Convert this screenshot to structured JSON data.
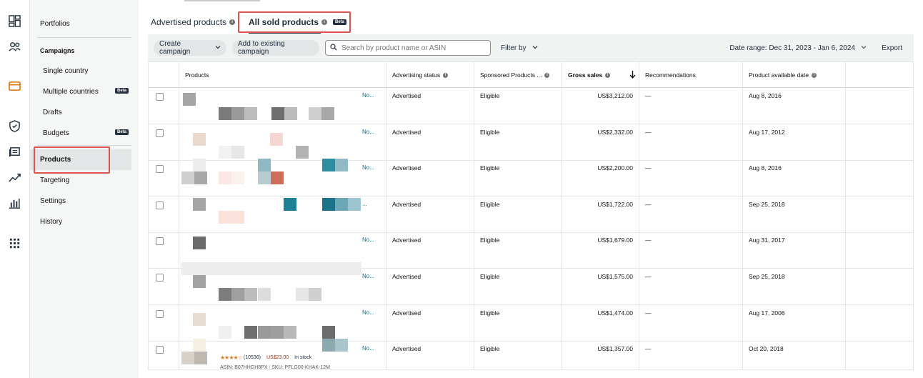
{
  "tabs": {
    "advertised": "Advertised products",
    "sold": "All sold products",
    "sold_badge": "Beta"
  },
  "nav": {
    "portfolios": "Portfolios",
    "campaigns": "Campaigns",
    "single_country": "Single country",
    "multiple_countries": "Multiple countries",
    "multiple_badge": "Beta",
    "drafts": "Drafts",
    "budgets": "Budgets",
    "budgets_badge": "Beta",
    "products": "Products",
    "targeting": "Targeting",
    "settings": "Settings",
    "history": "History"
  },
  "toolbar": {
    "create_campaign": "Create campaign",
    "add_existing": "Add to existing campaign",
    "search_placeholder": "Search by product name or ASIN",
    "filter_by": "Filter by",
    "date_range": "Date range: Dec 31, 2023 - Jan 6, 2024",
    "export": "Export"
  },
  "table": {
    "headers": {
      "products": "Products",
      "advertising_status": "Advertising status",
      "sponsored": "Sponsored Products ...",
      "gross_sales": "Gross sales",
      "recommendations": "Recommendations",
      "available_date": "Product available date"
    },
    "rows": [
      {
        "truncated": "No...",
        "status": "Advertised",
        "eligibility": "Eligible",
        "sales": "US$3,212.00",
        "rec": "—",
        "date": "Aug 8, 2016"
      },
      {
        "truncated": "No...",
        "status": "Advertised",
        "eligibility": "Eligible",
        "sales": "US$2,332.00",
        "rec": "—",
        "date": "Aug 17, 2012"
      },
      {
        "truncated": "No...",
        "status": "Advertised",
        "eligibility": "Eligible",
        "sales": "US$2,200.00",
        "rec": "—",
        "date": "Aug 8, 2016"
      },
      {
        "truncated": "...",
        "status": "Advertised",
        "eligibility": "Eligible",
        "sales": "US$1,722.00",
        "rec": "—",
        "date": "Sep 25, 2018"
      },
      {
        "truncated": "No...",
        "status": "Advertised",
        "eligibility": "Eligible",
        "sales": "US$1,679.00",
        "rec": "—",
        "date": "Aug 31, 2017"
      },
      {
        "truncated": "No...",
        "status": "Advertised",
        "eligibility": "Eligible",
        "sales": "US$1,575.00",
        "rec": "—",
        "date": "Sep 25, 2018"
      },
      {
        "truncated": "No...",
        "status": "Advertised",
        "eligibility": "Eligible",
        "sales": "US$1,474.00",
        "rec": "—",
        "date": "Aug 17, 2006"
      },
      {
        "truncated": "No...",
        "status": "Advertised",
        "eligibility": "Eligible",
        "sales": "US$1,357.00",
        "rec": "—",
        "date": "Oct 20, 2018"
      }
    ],
    "last_row_meta": {
      "rating_count": "(10536)",
      "price": "US$23.00",
      "stock": "In stock",
      "asin": "ASIN: B07HHGH8PX",
      "sku": "SKU: PFLG00-KHAK-12M"
    }
  },
  "colors": {
    "highlight": "#d9534f",
    "nav_bg": "#f5f6f6",
    "toolbar_bg": "#f1f2f2",
    "link": "#0f6b8a"
  },
  "icons": [
    "dashboard-icon",
    "people-icon",
    "campaign-manager-icon",
    "shield-icon",
    "media-icon",
    "trend-icon",
    "bar-chart-icon",
    "apps-grid-icon"
  ]
}
